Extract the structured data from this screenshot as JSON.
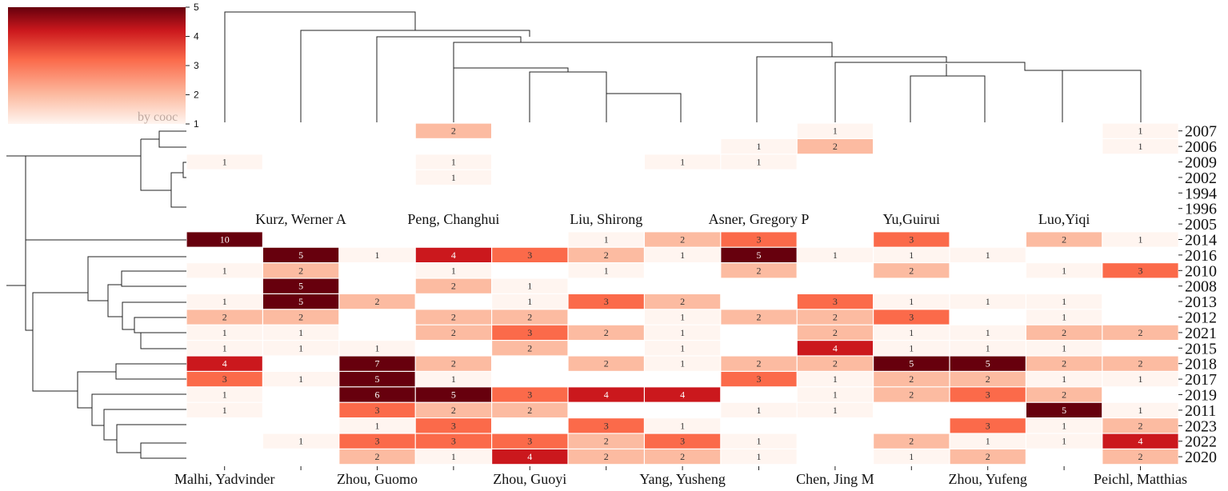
{
  "chart_data": {
    "type": "heatmap",
    "colorbar": {
      "label": "by cooc",
      "ticks": [
        "1",
        "2",
        "3",
        "4",
        "5"
      ],
      "range": [
        1,
        5
      ],
      "colors": {
        "low": "#fff5f0",
        "mid": "#fb6a4a",
        "high": "#67000d"
      }
    },
    "columns": [
      "Malhi, Yadvinder",
      "Kurz, Werner A",
      "Zhou, Guomo",
      "Peng, Changhui",
      "Zhou, Guoyi",
      "Liu, Shirong",
      "Yang, Yusheng",
      "Asner, Gregory P",
      "Chen, Jing M",
      "Yu,Guirui",
      "Zhou, Yufeng",
      "Luo,Yiqi",
      "Peichl, Matthias"
    ],
    "top_labels": [
      {
        "col": 1,
        "text": "Kurz, Werner A"
      },
      {
        "col": 3,
        "text": "Peng, Changhui"
      },
      {
        "col": 5,
        "text": "Liu, Shirong"
      },
      {
        "col": 7,
        "text": "Asner, Gregory P"
      },
      {
        "col": 9,
        "text": "Yu,Guirui"
      },
      {
        "col": 11,
        "text": "Luo,Yiqi"
      }
    ],
    "bottom_labels": [
      {
        "col": 0,
        "text": "Malhi, Yadvinder"
      },
      {
        "col": 2,
        "text": "Zhou, Guomo"
      },
      {
        "col": 4,
        "text": "Zhou, Guoyi"
      },
      {
        "col": 6,
        "text": "Yang, Yusheng"
      },
      {
        "col": 8,
        "text": "Chen, Jing M"
      },
      {
        "col": 10,
        "text": "Zhou, Yufeng"
      },
      {
        "col": 12,
        "text": "Peichl, Matthias"
      }
    ],
    "rows": [
      "2007",
      "2006",
      "2009",
      "2002",
      "1994",
      "1996",
      "2005",
      "2014",
      "2016",
      "2010",
      "2008",
      "2013",
      "2012",
      "2021",
      "2015",
      "2018",
      "2017",
      "2019",
      "2011",
      "2023",
      "2022",
      "2020"
    ],
    "values": [
      [
        null,
        null,
        null,
        2,
        null,
        null,
        null,
        null,
        1,
        null,
        null,
        null,
        1
      ],
      [
        null,
        null,
        null,
        null,
        null,
        null,
        null,
        1,
        2,
        null,
        null,
        null,
        1
      ],
      [
        1,
        null,
        null,
        1,
        null,
        null,
        1,
        1,
        null,
        null,
        null,
        null,
        null
      ],
      [
        null,
        null,
        null,
        1,
        null,
        null,
        null,
        null,
        null,
        null,
        null,
        null,
        null
      ],
      [
        null,
        null,
        null,
        null,
        null,
        null,
        null,
        null,
        null,
        null,
        null,
        null,
        null
      ],
      [
        null,
        null,
        null,
        null,
        null,
        null,
        null,
        null,
        null,
        null,
        null,
        null,
        null
      ],
      [
        null,
        null,
        null,
        null,
        null,
        null,
        null,
        null,
        null,
        null,
        null,
        null,
        null
      ],
      [
        10,
        null,
        null,
        null,
        null,
        1,
        2,
        3,
        null,
        3,
        null,
        2,
        1
      ],
      [
        null,
        5,
        1,
        4,
        3,
        2,
        1,
        5,
        1,
        1,
        1,
        null,
        null
      ],
      [
        1,
        2,
        null,
        1,
        null,
        1,
        null,
        2,
        null,
        2,
        null,
        1,
        3
      ],
      [
        null,
        5,
        null,
        2,
        1,
        null,
        null,
        null,
        null,
        null,
        null,
        null,
        null
      ],
      [
        1,
        5,
        2,
        null,
        1,
        3,
        2,
        null,
        3,
        1,
        1,
        1,
        null
      ],
      [
        2,
        2,
        null,
        2,
        2,
        null,
        1,
        2,
        2,
        3,
        null,
        1,
        null
      ],
      [
        1,
        1,
        null,
        2,
        3,
        2,
        1,
        null,
        2,
        1,
        1,
        2,
        2
      ],
      [
        1,
        1,
        1,
        null,
        2,
        null,
        1,
        null,
        4,
        1,
        1,
        1,
        null
      ],
      [
        4,
        null,
        7,
        2,
        null,
        2,
        1,
        2,
        2,
        5,
        5,
        2,
        2
      ],
      [
        3,
        1,
        5,
        1,
        null,
        null,
        null,
        3,
        1,
        2,
        2,
        1,
        1
      ],
      [
        1,
        null,
        6,
        5,
        3,
        4,
        4,
        null,
        1,
        2,
        3,
        2,
        null
      ],
      [
        1,
        null,
        3,
        2,
        2,
        null,
        null,
        1,
        1,
        null,
        null,
        5,
        1
      ],
      [
        null,
        null,
        1,
        3,
        null,
        3,
        1,
        null,
        null,
        null,
        3,
        1,
        2
      ],
      [
        null,
        1,
        3,
        3,
        3,
        2,
        3,
        1,
        null,
        2,
        1,
        1,
        4
      ],
      [
        null,
        null,
        2,
        1,
        4,
        2,
        2,
        1,
        null,
        1,
        2,
        null,
        2
      ]
    ]
  }
}
